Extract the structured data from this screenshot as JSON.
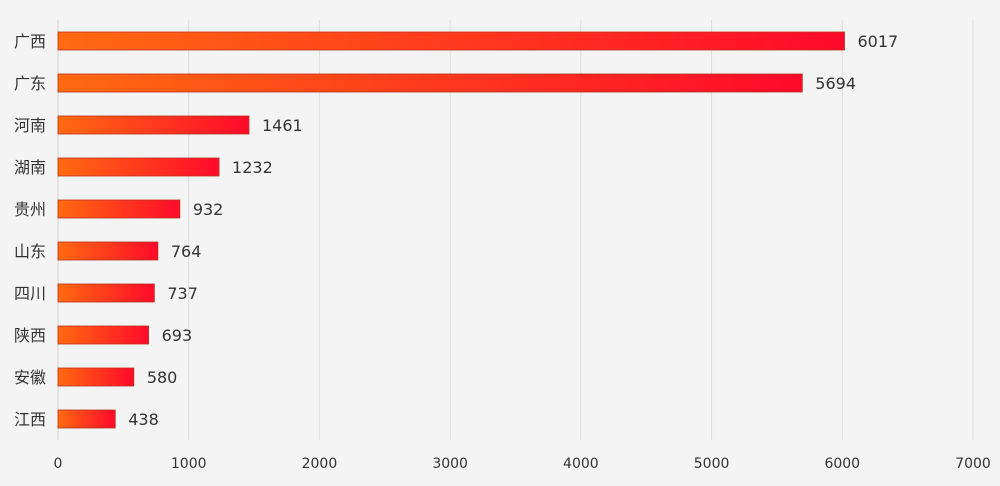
{
  "chart_data": {
    "type": "bar",
    "orientation": "horizontal",
    "categories": [
      "广西",
      "广东",
      "河南",
      "湖南",
      "贵州",
      "山东",
      "四川",
      "陕西",
      "安徽",
      "江西"
    ],
    "values": [
      6017,
      5694,
      1461,
      1232,
      932,
      764,
      737,
      693,
      580,
      438
    ],
    "xlim": [
      0,
      7000
    ],
    "xticks": [
      0,
      1000,
      2000,
      3000,
      4000,
      5000,
      6000,
      7000
    ],
    "grid": true,
    "data_labels": true,
    "colors": {
      "bar_start": "#ff6a10",
      "bar_end": "#ff0a2a",
      "grid": "#dcdcdc",
      "background": "#f4f4f4",
      "text": "#333333"
    }
  }
}
